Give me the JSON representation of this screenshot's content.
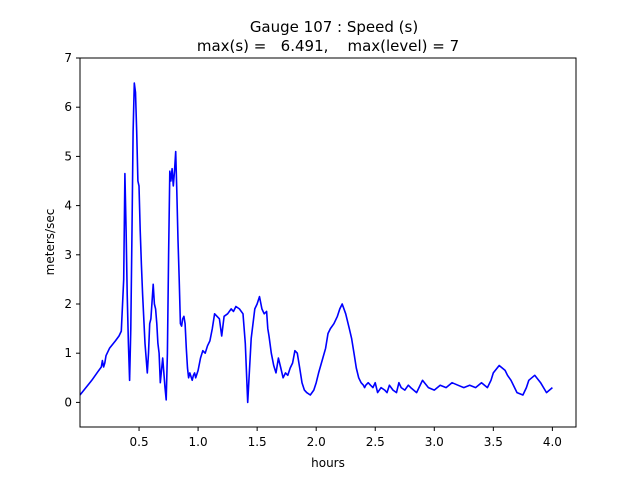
{
  "chart_data": {
    "type": "line",
    "title": "Gauge 107 : Speed (s)",
    "subtitle": "max(s) =   6.491,    max(level) = 7",
    "xlabel": "hours",
    "ylabel": "meters/sec",
    "xlim": [
      0.0,
      4.2
    ],
    "ylim": [
      -0.5,
      7.0
    ],
    "xticks": [
      0.5,
      1.0,
      1.5,
      2.0,
      2.5,
      3.0,
      3.5,
      4.0
    ],
    "xtick_labels": [
      "0.5",
      "1.0",
      "1.5",
      "2.0",
      "2.5",
      "3.0",
      "3.5",
      "4.0"
    ],
    "yticks": [
      0,
      1,
      2,
      3,
      4,
      5,
      6,
      7
    ],
    "ytick_labels": [
      "0",
      "1",
      "2",
      "3",
      "4",
      "5",
      "6",
      "7"
    ],
    "grid": false,
    "series": [
      {
        "color": "#0000ff",
        "x": [
          0.0,
          0.05,
          0.1,
          0.15,
          0.18,
          0.19,
          0.2,
          0.21,
          0.22,
          0.25,
          0.3,
          0.33,
          0.35,
          0.37,
          0.38,
          0.39,
          0.4,
          0.41,
          0.42,
          0.43,
          0.44,
          0.45,
          0.46,
          0.47,
          0.48,
          0.49,
          0.5,
          0.51,
          0.52,
          0.53,
          0.55,
          0.57,
          0.58,
          0.59,
          0.6,
          0.62,
          0.63,
          0.64,
          0.65,
          0.66,
          0.67,
          0.68,
          0.7,
          0.72,
          0.73,
          0.74,
          0.75,
          0.76,
          0.77,
          0.78,
          0.79,
          0.8,
          0.81,
          0.82,
          0.83,
          0.84,
          0.85,
          0.86,
          0.87,
          0.88,
          0.89,
          0.9,
          0.91,
          0.92,
          0.93,
          0.95,
          0.96,
          0.97,
          0.98,
          1.0,
          1.02,
          1.04,
          1.06,
          1.08,
          1.1,
          1.12,
          1.14,
          1.16,
          1.18,
          1.2,
          1.22,
          1.25,
          1.28,
          1.3,
          1.32,
          1.35,
          1.38,
          1.4,
          1.42,
          1.45,
          1.48,
          1.5,
          1.52,
          1.54,
          1.56,
          1.58,
          1.59,
          1.6,
          1.62,
          1.64,
          1.66,
          1.67,
          1.68,
          1.7,
          1.72,
          1.74,
          1.76,
          1.78,
          1.8,
          1.82,
          1.84,
          1.86,
          1.88,
          1.9,
          1.92,
          1.95,
          1.98,
          2.0,
          2.02,
          2.05,
          2.08,
          2.1,
          2.12,
          2.15,
          2.18,
          2.2,
          2.22,
          2.25,
          2.28,
          2.3,
          2.32,
          2.34,
          2.36,
          2.38,
          2.4,
          2.41,
          2.42,
          2.44,
          2.46,
          2.48,
          2.5,
          2.52,
          2.55,
          2.58,
          2.6,
          2.62,
          2.65,
          2.68,
          2.7,
          2.72,
          2.75,
          2.78,
          2.8,
          2.85,
          2.9,
          2.95,
          3.0,
          3.05,
          3.1,
          3.15,
          3.2,
          3.25,
          3.3,
          3.35,
          3.4,
          3.45,
          3.48,
          3.5,
          3.55,
          3.6,
          3.62,
          3.65,
          3.7,
          3.75,
          3.78,
          3.8,
          3.85,
          3.9,
          3.95,
          4.0
        ],
        "y": [
          0.15,
          0.3,
          0.45,
          0.62,
          0.72,
          0.85,
          0.72,
          0.8,
          0.95,
          1.1,
          1.25,
          1.35,
          1.45,
          2.5,
          4.65,
          3.5,
          2.2,
          1.2,
          0.45,
          1.5,
          3.5,
          5.5,
          6.49,
          6.3,
          5.5,
          4.5,
          4.4,
          3.5,
          2.8,
          2.2,
          1.2,
          0.6,
          1.0,
          1.6,
          1.7,
          2.4,
          2.0,
          1.9,
          1.6,
          1.2,
          1.0,
          0.4,
          0.9,
          0.3,
          0.05,
          1.0,
          3.0,
          4.7,
          4.5,
          4.75,
          4.4,
          4.7,
          5.1,
          4.3,
          3.3,
          2.5,
          1.6,
          1.55,
          1.7,
          1.75,
          1.6,
          1.1,
          0.7,
          0.5,
          0.6,
          0.45,
          0.55,
          0.6,
          0.5,
          0.65,
          0.9,
          1.05,
          1.0,
          1.15,
          1.25,
          1.5,
          1.8,
          1.75,
          1.7,
          1.35,
          1.75,
          1.8,
          1.9,
          1.85,
          1.95,
          1.9,
          1.8,
          1.2,
          0.0,
          1.3,
          1.9,
          2.0,
          2.15,
          1.9,
          1.8,
          1.85,
          1.5,
          1.35,
          1.0,
          0.75,
          0.6,
          0.75,
          0.9,
          0.7,
          0.5,
          0.6,
          0.55,
          0.7,
          0.8,
          1.05,
          1.0,
          0.7,
          0.4,
          0.25,
          0.2,
          0.15,
          0.25,
          0.4,
          0.6,
          0.85,
          1.1,
          1.4,
          1.5,
          1.6,
          1.75,
          1.9,
          2.0,
          1.8,
          1.5,
          1.3,
          1.0,
          0.7,
          0.5,
          0.4,
          0.35,
          0.3,
          0.35,
          0.4,
          0.35,
          0.3,
          0.4,
          0.2,
          0.3,
          0.25,
          0.2,
          0.35,
          0.25,
          0.2,
          0.4,
          0.3,
          0.25,
          0.35,
          0.3,
          0.2,
          0.45,
          0.3,
          0.25,
          0.35,
          0.3,
          0.4,
          0.35,
          0.3,
          0.35,
          0.3,
          0.4,
          0.3,
          0.45,
          0.6,
          0.75,
          0.65,
          0.55,
          0.45,
          0.2,
          0.15,
          0.3,
          0.45,
          0.55,
          0.4,
          0.2,
          0.3
        ]
      }
    ]
  }
}
